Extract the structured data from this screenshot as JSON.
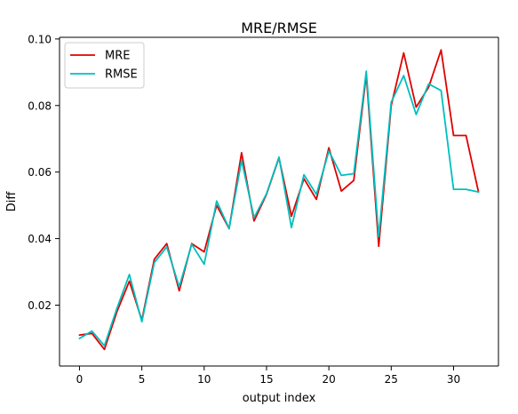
{
  "chart_data": {
    "type": "line",
    "title": "MRE/RMSE",
    "xlabel": "output index",
    "ylabel": "Diff",
    "xlim": [
      -1.6,
      33.6
    ],
    "ylim": [
      0.0017,
      0.1005
    ],
    "xticks": [
      0,
      5,
      10,
      15,
      20,
      25,
      30
    ],
    "yticks": [
      0.02,
      0.04,
      0.06,
      0.08,
      0.1
    ],
    "ytick_labels": [
      "0.02",
      "0.04",
      "0.06",
      "0.08",
      "0.10"
    ],
    "grid": false,
    "legend": {
      "position": "top-left"
    },
    "x": [
      0,
      1,
      2,
      3,
      4,
      5,
      6,
      7,
      8,
      9,
      10,
      11,
      12,
      13,
      14,
      15,
      16,
      17,
      18,
      19,
      20,
      21,
      22,
      23,
      24,
      25,
      26,
      27,
      28,
      29,
      30,
      31,
      32
    ],
    "series": [
      {
        "name": "MRE",
        "color": "#e00000",
        "values": [
          0.011,
          0.0115,
          0.0067,
          0.018,
          0.0272,
          0.0155,
          0.0338,
          0.0385,
          0.0243,
          0.0385,
          0.036,
          0.05,
          0.043,
          0.0658,
          0.0453,
          0.0533,
          0.0643,
          0.0467,
          0.058,
          0.0518,
          0.0673,
          0.0543,
          0.0575,
          0.0893,
          0.0377,
          0.08,
          0.0958,
          0.0795,
          0.0855,
          0.0967,
          0.071,
          0.071,
          0.054
        ]
      },
      {
        "name": "RMSE",
        "color": "#00bfbf",
        "values": [
          0.01,
          0.0122,
          0.0078,
          0.019,
          0.0292,
          0.015,
          0.0328,
          0.0375,
          0.0255,
          0.0383,
          0.0323,
          0.0513,
          0.043,
          0.0635,
          0.0463,
          0.0535,
          0.0645,
          0.0433,
          0.0592,
          0.0533,
          0.0663,
          0.059,
          0.0595,
          0.0903,
          0.0405,
          0.081,
          0.089,
          0.0773,
          0.0865,
          0.0845,
          0.0548,
          0.0548,
          0.054
        ]
      }
    ]
  }
}
